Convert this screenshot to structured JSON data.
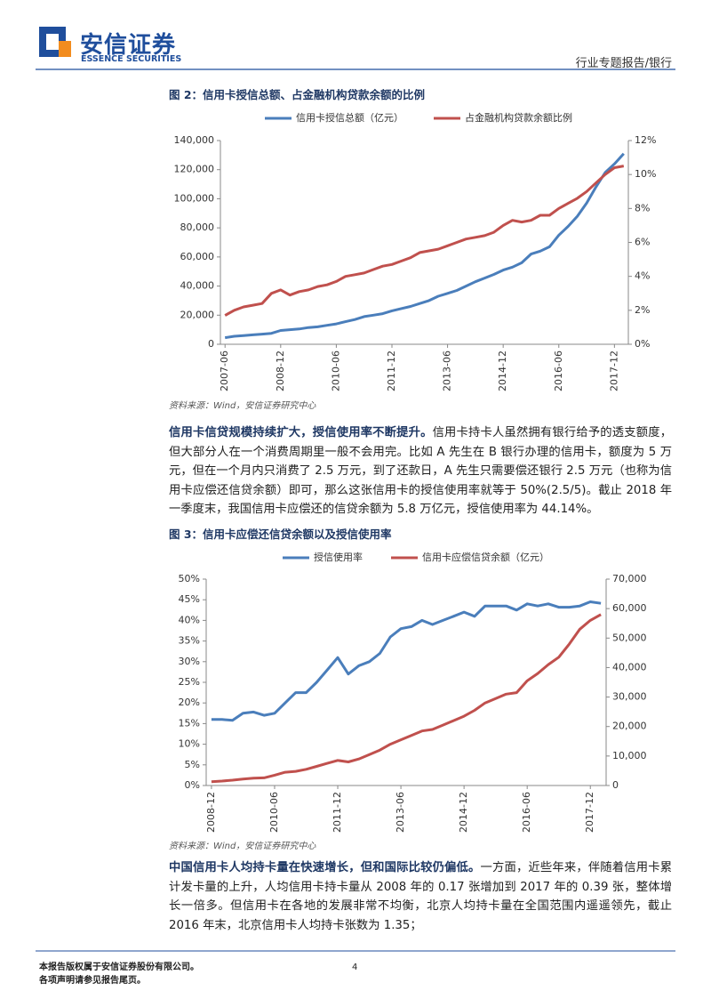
{
  "header": {
    "logo_cn": "安信证券",
    "logo_en": "ESSENCE SECURITIES",
    "section": "行业专题报告/银行"
  },
  "figures": [
    {
      "caption": "图 2：信用卡授信总额、占金融机构贷款余额的比例",
      "source": "资料来源：Wind，安信证券研究中心"
    },
    {
      "caption": "图 3：信用卡应偿还信贷余额以及授信使用率",
      "source": "资料来源：Wind，安信证券研究中心"
    }
  ],
  "paragraphs": [
    {
      "lead": "信用卡信贷规模持续扩大，授信使用率不断提升。",
      "text": "信用卡持卡人虽然拥有银行给予的透支额度，但大部分人在一个消费周期里一般不会用完。比如 A 先生在 B 银行办理的信用卡，额度为 5 万元，但在一个月内只消费了 2.5 万元，到了还款日，A 先生只需要偿还银行 2.5 万元（也称为信用卡应偿还信贷余额）即可，那么这张信用卡的授信使用率就等于 50%(2.5/5)。截止 2018 年一季度末，我国信用卡应偿还的信贷余额为 5.8 万亿元，授信使用率为 44.14%。"
    },
    {
      "lead": "中国信用卡人均持卡量在快速增长，但和国际比较仍偏低。",
      "text": "一方面，近些年来，伴随着信用卡累计发卡量的上升，人均信用卡持卡量从 2008 年的 0.17 张增加到 2017 年的 0.39 张，整体增长一倍多。但信用卡在各地的发展非常不均衡，北京人均持卡量在全国范围内遥遥领先，截止 2016 年末，北京信用卡人均持卡张数为 1.35；"
    }
  ],
  "footer": {
    "copyright": "本报告版权属于安信证券股份有限公司。",
    "disclaimer": "各项声明请参见报告尾页。",
    "page": 4
  },
  "chart_data": [
    {
      "type": "line",
      "legend": "top",
      "categories": [
        "2007-06",
        null,
        null,
        null,
        null,
        null,
        "2008-12",
        null,
        null,
        null,
        null,
        null,
        "2010-06",
        null,
        null,
        null,
        null,
        null,
        "2011-12",
        null,
        null,
        null,
        null,
        null,
        "2013-06",
        null,
        null,
        null,
        null,
        null,
        "2014-12",
        null,
        null,
        null,
        null,
        null,
        "2016-06",
        null,
        null,
        null,
        null,
        null,
        "2017-12",
        null
      ],
      "series": [
        {
          "name": "信用卡授信总额（亿元）",
          "color": "#4a7ebb",
          "axis": "y",
          "values": [
            4500,
            5500,
            6000,
            6500,
            7000,
            7500,
            9500,
            10000,
            10500,
            11500,
            12000,
            13000,
            14000,
            15500,
            17000,
            19000,
            20000,
            21000,
            23000,
            24500,
            26000,
            28000,
            30000,
            33000,
            35000,
            37000,
            40000,
            43000,
            45500,
            48000,
            51000,
            53000,
            56000,
            62000,
            64000,
            67000,
            75000,
            81000,
            88000,
            97000,
            108000,
            118000,
            124000,
            131000
          ]
        },
        {
          "name": "占金融机构贷款余额比例",
          "color": "#c0504d",
          "axis": "y2",
          "values": [
            1.7,
            2.0,
            2.2,
            2.3,
            2.4,
            3.0,
            3.2,
            2.9,
            3.1,
            3.2,
            3.4,
            3.5,
            3.7,
            4.0,
            4.1,
            4.2,
            4.4,
            4.6,
            4.7,
            4.9,
            5.1,
            5.4,
            5.5,
            5.6,
            5.8,
            6.0,
            6.2,
            6.3,
            6.4,
            6.6,
            7.0,
            7.3,
            7.2,
            7.3,
            7.6,
            7.6,
            8.0,
            8.3,
            8.6,
            9.0,
            9.5,
            10.0,
            10.4,
            10.5
          ]
        }
      ],
      "ylim": [
        0,
        140000
      ],
      "yticks": [
        0,
        {
          "value": 20000,
          "label": "20,000"
        },
        {
          "value": 40000,
          "label": "40,000"
        },
        {
          "value": 60000,
          "label": "60,000"
        },
        {
          "value": 80000,
          "label": "80,000"
        },
        {
          "value": 100000,
          "label": "100,000"
        },
        {
          "value": 120000,
          "label": "120,000"
        },
        {
          "value": 140000,
          "label": "140,000"
        }
      ],
      "y2lim": [
        0,
        12
      ],
      "y2ticks": [
        {
          "value": 0,
          "label": "0%"
        },
        {
          "value": 2,
          "label": "2%"
        },
        {
          "value": 4,
          "label": "4%"
        },
        {
          "value": 6,
          "label": "6%"
        },
        {
          "value": 8,
          "label": "8%"
        },
        {
          "value": 10,
          "label": "10%"
        },
        {
          "value": 12,
          "label": "12%"
        }
      ]
    },
    {
      "type": "line",
      "legend": "top",
      "categories": [
        "2008-12",
        null,
        null,
        null,
        null,
        null,
        "2010-06",
        null,
        null,
        null,
        null,
        null,
        "2011-12",
        null,
        null,
        null,
        null,
        null,
        "2013-06",
        null,
        null,
        null,
        null,
        null,
        "2014-12",
        null,
        null,
        null,
        null,
        null,
        "2016-06",
        null,
        null,
        null,
        null,
        null,
        "2017-12",
        null
      ],
      "series": [
        {
          "name": "授信使用率",
          "color": "#4a7ebb",
          "axis": "y",
          "values": [
            16,
            16,
            15.8,
            17.5,
            17.8,
            17,
            17.5,
            20,
            22.5,
            22.5,
            25,
            28,
            31,
            27,
            29,
            30,
            32,
            36,
            38,
            38.5,
            40,
            39,
            40,
            41,
            42,
            41,
            43.5,
            43.5,
            43.5,
            42.5,
            44,
            43.5,
            44,
            43.2,
            43.2,
            43.5,
            44.5,
            44.14
          ]
        },
        {
          "name": "信用卡应偿信贷余额（亿元）",
          "color": "#c0504d",
          "axis": "y2",
          "values": [
            1300,
            1500,
            1800,
            2200,
            2500,
            2600,
            3500,
            4500,
            4800,
            5500,
            6500,
            7500,
            8500,
            8000,
            9000,
            10500,
            12000,
            14000,
            15500,
            17000,
            18500,
            19000,
            20500,
            22000,
            23500,
            25500,
            28000,
            29500,
            31000,
            31500,
            35500,
            38000,
            41000,
            43500,
            48000,
            53000,
            56000,
            58000
          ]
        }
      ],
      "ylim": [
        0,
        50
      ],
      "yticks": [
        {
          "value": 0,
          "label": "0%"
        },
        {
          "value": 5,
          "label": "5%"
        },
        {
          "value": 10,
          "label": "10%"
        },
        {
          "value": 15,
          "label": "15%"
        },
        {
          "value": 20,
          "label": "20%"
        },
        {
          "value": 25,
          "label": "25%"
        },
        {
          "value": 30,
          "label": "30%"
        },
        {
          "value": 35,
          "label": "35%"
        },
        {
          "value": 40,
          "label": "40%"
        },
        {
          "value": 45,
          "label": "45%"
        },
        {
          "value": 50,
          "label": "50%"
        }
      ],
      "y2lim": [
        0,
        70000
      ],
      "y2ticks": [
        0,
        {
          "value": 10000,
          "label": "10,000"
        },
        {
          "value": 20000,
          "label": "20,000"
        },
        {
          "value": 30000,
          "label": "30,000"
        },
        {
          "value": 40000,
          "label": "40,000"
        },
        {
          "value": 50000,
          "label": "50,000"
        },
        {
          "value": 60000,
          "label": "60,000"
        },
        {
          "value": 70000,
          "label": "70,000"
        }
      ]
    }
  ]
}
